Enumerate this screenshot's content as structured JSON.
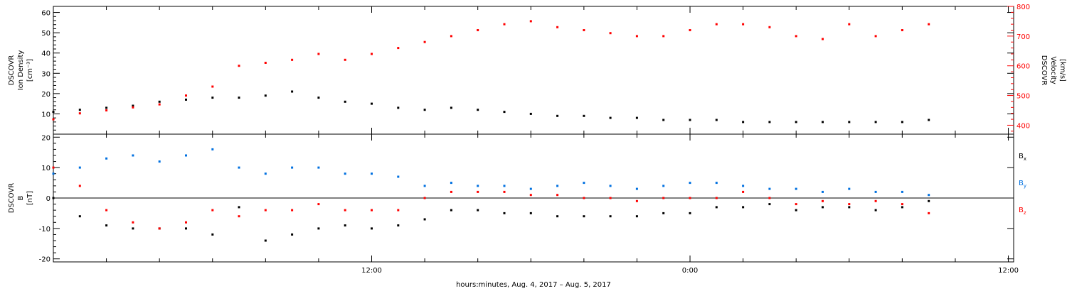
{
  "chart_data": [
    {
      "type": "scatter",
      "panel": "top",
      "y_axis_left": {
        "label_lines": [
          "DSCOVR",
          "Ion Density",
          "[cm⁻³]"
        ],
        "ylim": [
          0,
          63
        ],
        "ticks": [
          10,
          20,
          30,
          40,
          50,
          60
        ],
        "tick_labels": [
          "10",
          "20",
          "30",
          "40",
          "50",
          "60"
        ]
      },
      "y_axis_right": {
        "label_lines": [
          "DSCOVR",
          "Velocity",
          "[km/s]"
        ],
        "ylim": [
          370,
          800
        ],
        "ticks": [
          400,
          500,
          600,
          700,
          800
        ],
        "tick_labels": [
          "400",
          "500",
          "600",
          "700",
          "800"
        ],
        "color": "#ff0000"
      },
      "series": [
        {
          "axis": "left",
          "color": "#000000",
          "x": [
            0,
            1,
            2,
            3,
            4,
            5,
            6,
            7,
            8,
            9,
            10,
            11,
            12,
            13,
            14,
            15,
            16,
            17,
            18,
            19,
            20,
            21,
            22,
            23,
            24,
            25,
            26,
            27,
            28,
            29,
            30,
            31,
            32,
            33
          ],
          "values": [
            11,
            12,
            13,
            14,
            16,
            17,
            18,
            18,
            19,
            21,
            18,
            16,
            15,
            13,
            12,
            13,
            12,
            11,
            10,
            9,
            9,
            8,
            8,
            7,
            7,
            7,
            6,
            6,
            6,
            6,
            6,
            6,
            6,
            7
          ]
        },
        {
          "axis": "right",
          "color": "#ff0000",
          "x": [
            0,
            1,
            2,
            3,
            4,
            5,
            6,
            7,
            8,
            9,
            10,
            11,
            12,
            13,
            14,
            15,
            16,
            17,
            18,
            19,
            20,
            21,
            22,
            23,
            24,
            25,
            26,
            27,
            28,
            29,
            30,
            31,
            32,
            33
          ],
          "values": [
            420,
            440,
            450,
            460,
            470,
            500,
            530,
            600,
            610,
            620,
            640,
            620,
            640,
            660,
            680,
            700,
            720,
            740,
            750,
            730,
            720,
            710,
            700,
            700,
            720,
            740,
            740,
            730,
            700,
            690,
            740,
            700,
            720,
            740
          ]
        }
      ]
    },
    {
      "type": "scatter",
      "panel": "bottom",
      "y_axis_left": {
        "label_lines": [
          "DSCOVR",
          "B",
          "[nT]"
        ],
        "ylim": [
          -21,
          21
        ],
        "ticks": [
          -20,
          -10,
          0,
          10,
          20
        ],
        "tick_labels": [
          "-20",
          "-10",
          "0",
          "10",
          "20"
        ]
      },
      "legend_position": "right",
      "series": [
        {
          "name": "Bx",
          "color": "#000000",
          "x": [
            0,
            1,
            2,
            3,
            4,
            5,
            6,
            7,
            8,
            9,
            10,
            11,
            12,
            13,
            14,
            15,
            16,
            17,
            18,
            19,
            20,
            21,
            22,
            23,
            24,
            25,
            26,
            27,
            28,
            29,
            30,
            31,
            32,
            33
          ],
          "values": [
            0,
            -6,
            -9,
            -10,
            -10,
            -10,
            -12,
            -3,
            -14,
            -12,
            -10,
            -9,
            -10,
            -9,
            -7,
            -4,
            -4,
            -5,
            -5,
            -6,
            -6,
            -6,
            -6,
            -5,
            -5,
            -3,
            -3,
            -2,
            -4,
            -3,
            -3,
            -4,
            -3,
            -1
          ]
        },
        {
          "name": "By",
          "color": "#0070e0",
          "x": [
            0,
            1,
            2,
            3,
            4,
            5,
            6,
            7,
            8,
            9,
            10,
            11,
            12,
            13,
            14,
            15,
            16,
            17,
            18,
            19,
            20,
            21,
            22,
            23,
            24,
            25,
            26,
            27,
            28,
            29,
            30,
            31,
            32,
            33
          ],
          "values": [
            8,
            10,
            13,
            14,
            12,
            14,
            16,
            10,
            8,
            10,
            10,
            8,
            8,
            7,
            4,
            5,
            4,
            4,
            3,
            4,
            5,
            4,
            3,
            4,
            5,
            5,
            4,
            3,
            3,
            2,
            3,
            2,
            2,
            1
          ]
        },
        {
          "name": "Bz",
          "color": "#ff0000",
          "x": [
            0,
            1,
            2,
            3,
            4,
            5,
            6,
            7,
            8,
            9,
            10,
            11,
            12,
            13,
            14,
            15,
            16,
            17,
            18,
            19,
            20,
            21,
            22,
            23,
            24,
            25,
            26,
            27,
            28,
            29,
            30,
            31,
            32,
            33
          ],
          "values": [
            10,
            4,
            -4,
            -8,
            -10,
            -8,
            -4,
            -6,
            -4,
            -4,
            -2,
            -4,
            -4,
            -4,
            0,
            2,
            2,
            2,
            1,
            1,
            0,
            0,
            -1,
            0,
            0,
            0,
            2,
            0,
            -2,
            -1,
            -2,
            -1,
            -2,
            -5
          ]
        }
      ]
    }
  ],
  "legend": {
    "bx": {
      "base": "B",
      "sub": "x",
      "color": "#000000"
    },
    "by": {
      "base": "B",
      "sub": "y",
      "color": "#0070e0"
    },
    "bz": {
      "base": "B",
      "sub": "z",
      "color": "#ff0000"
    }
  },
  "x_axis": {
    "xlim": [
      0,
      36.2
    ],
    "tick_hours": [
      12,
      24,
      36
    ],
    "tick_labels": [
      "12:00",
      "0:00",
      "12:00"
    ],
    "minor_step": 2,
    "xlabel": "hours:minutes, Aug.  4, 2017 – Aug.  5, 2017"
  },
  "colors": {
    "black": "#000000",
    "blue": "#0070e0",
    "red": "#ff0000"
  }
}
